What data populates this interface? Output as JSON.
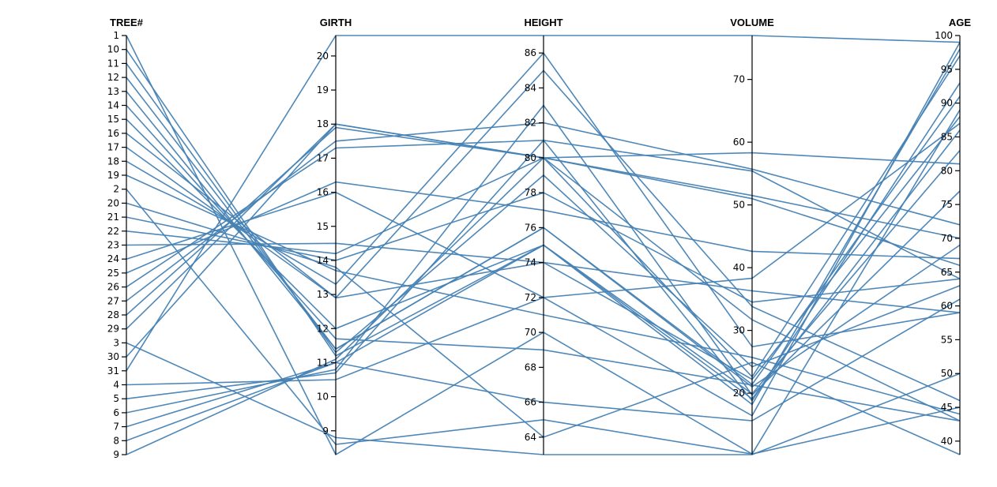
{
  "chart_data": {
    "type": "parallel-coordinates",
    "line_color": "#4682b4",
    "axes": [
      {
        "key": "tree",
        "title": "TREE#",
        "scale": "ordinal",
        "categories": [
          "1",
          "10",
          "11",
          "12",
          "13",
          "14",
          "15",
          "16",
          "17",
          "18",
          "19",
          "2",
          "20",
          "21",
          "22",
          "23",
          "24",
          "25",
          "26",
          "27",
          "28",
          "29",
          "3",
          "30",
          "31",
          "4",
          "5",
          "6",
          "7",
          "8",
          "9"
        ]
      },
      {
        "key": "girth",
        "title": "GIRTH",
        "scale": "linear",
        "domain": [
          8.3,
          20.6
        ],
        "ticks": [
          9,
          10,
          11,
          12,
          13,
          14,
          15,
          16,
          17,
          18,
          19,
          20
        ]
      },
      {
        "key": "height",
        "title": "HEIGHT",
        "scale": "linear",
        "domain": [
          63,
          87
        ],
        "ticks": [
          64,
          66,
          68,
          70,
          72,
          74,
          76,
          78,
          80,
          82,
          84,
          86
        ]
      },
      {
        "key": "volume",
        "title": "VOLUME",
        "scale": "linear",
        "domain": [
          10.2,
          77
        ],
        "ticks": [
          20,
          30,
          40,
          50,
          60,
          70
        ]
      },
      {
        "key": "age",
        "title": "AGE",
        "scale": "linear",
        "domain": [
          38,
          100
        ],
        "ticks": [
          40,
          45,
          50,
          55,
          60,
          65,
          70,
          75,
          80,
          85,
          90,
          95,
          100
        ]
      }
    ],
    "records": [
      {
        "tree": "1",
        "girth": 8.3,
        "height": 70,
        "volume": 10.3,
        "age": 89
      },
      {
        "tree": "2",
        "girth": 8.6,
        "height": 65,
        "volume": 10.3,
        "age": 45
      },
      {
        "tree": "3",
        "girth": 8.8,
        "height": 63,
        "volume": 10.2,
        "age": 50
      },
      {
        "tree": "4",
        "girth": 10.5,
        "height": 72,
        "volume": 16.4,
        "age": 99
      },
      {
        "tree": "5",
        "girth": 10.7,
        "height": 81,
        "volume": 18.8,
        "age": 93
      },
      {
        "tree": "6",
        "girth": 10.8,
        "height": 83,
        "volume": 19.7,
        "age": 77
      },
      {
        "tree": "7",
        "girth": 11.0,
        "height": 66,
        "volume": 15.6,
        "age": 61
      },
      {
        "tree": "8",
        "girth": 11.0,
        "height": 75,
        "volume": 18.2,
        "age": 98
      },
      {
        "tree": "9",
        "girth": 11.1,
        "height": 80,
        "volume": 22.6,
        "age": 97
      },
      {
        "tree": "10",
        "girth": 11.2,
        "height": 75,
        "volume": 19.9,
        "age": 83
      },
      {
        "tree": "11",
        "girth": 11.3,
        "height": 79,
        "volume": 24.2,
        "age": 63
      },
      {
        "tree": "12",
        "girth": 11.4,
        "height": 76,
        "volume": 21.0,
        "age": 69
      },
      {
        "tree": "13",
        "girth": 11.4,
        "height": 76,
        "volume": 21.4,
        "age": 91
      },
      {
        "tree": "14",
        "girth": 11.7,
        "height": 69,
        "volume": 21.3,
        "age": 43
      },
      {
        "tree": "15",
        "girth": 12.0,
        "height": 75,
        "volume": 19.1,
        "age": 86
      },
      {
        "tree": "16",
        "girth": 12.9,
        "height": 74,
        "volume": 22.2,
        "age": 88
      },
      {
        "tree": "17",
        "girth": 12.9,
        "height": 85,
        "volume": 33.8,
        "age": 46
      },
      {
        "tree": "18",
        "girth": 13.3,
        "height": 86,
        "volume": 27.4,
        "age": 59
      },
      {
        "tree": "19",
        "girth": 13.7,
        "height": 71,
        "volume": 25.7,
        "age": 44
      },
      {
        "tree": "20",
        "girth": 13.8,
        "height": 64,
        "volume": 24.9,
        "age": 38
      },
      {
        "tree": "21",
        "girth": 14.0,
        "height": 78,
        "volume": 34.5,
        "age": 64
      },
      {
        "tree": "22",
        "girth": 14.2,
        "height": 80,
        "volume": 31.7,
        "age": 43
      },
      {
        "tree": "23",
        "girth": 14.5,
        "height": 74,
        "volume": 36.3,
        "age": 59
      },
      {
        "tree": "24",
        "girth": 16.0,
        "height": 72,
        "volume": 38.3,
        "age": 87
      },
      {
        "tree": "25",
        "girth": 16.3,
        "height": 77,
        "volume": 42.6,
        "age": 67
      },
      {
        "tree": "26",
        "girth": 17.3,
        "height": 81,
        "volume": 55.4,
        "age": 64
      },
      {
        "tree": "27",
        "girth": 17.5,
        "height": 82,
        "volume": 55.7,
        "age": 72
      },
      {
        "tree": "28",
        "girth": 17.9,
        "height": 80,
        "volume": 58.3,
        "age": 81
      },
      {
        "tree": "29",
        "girth": 18.0,
        "height": 80,
        "volume": 51.5,
        "age": 70
      },
      {
        "tree": "30",
        "girth": 18.0,
        "height": 80,
        "volume": 51.0,
        "age": 66
      },
      {
        "tree": "31",
        "girth": 20.6,
        "height": 87,
        "volume": 77.0,
        "age": 99
      }
    ]
  }
}
